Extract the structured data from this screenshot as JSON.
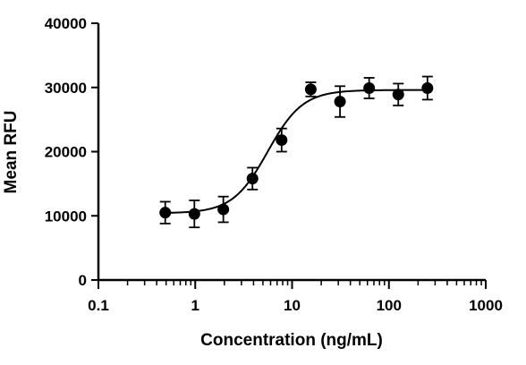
{
  "chart_data": {
    "type": "scatter",
    "title": "",
    "xlabel": "Concentration (ng/mL)",
    "ylabel": "Mean RFU",
    "x_scale": "log",
    "xlim": [
      0.1,
      1000
    ],
    "ylim": [
      0,
      40000
    ],
    "x_ticks": [
      "0.1",
      "1",
      "10",
      "100",
      "1000"
    ],
    "y_ticks": [
      "0",
      "10000",
      "20000",
      "30000",
      "40000"
    ],
    "grid": false,
    "legend": "none",
    "series": [
      {
        "name": "",
        "color": "#000000",
        "points": [
          {
            "x": 0.49,
            "y": 10500,
            "err": 1700
          },
          {
            "x": 0.98,
            "y": 10300,
            "err": 2100
          },
          {
            "x": 1.95,
            "y": 11000,
            "err": 2000
          },
          {
            "x": 3.9,
            "y": 15800,
            "err": 1700
          },
          {
            "x": 7.8,
            "y": 21800,
            "err": 1800
          },
          {
            "x": 15.6,
            "y": 29700,
            "err": 1100
          },
          {
            "x": 31.25,
            "y": 27800,
            "err": 2400
          },
          {
            "x": 62.5,
            "y": 29900,
            "err": 1600
          },
          {
            "x": 125,
            "y": 28900,
            "err": 1700
          },
          {
            "x": 250,
            "y": 29900,
            "err": 1800
          }
        ],
        "fit": {
          "model": "4PL",
          "bottom": 10400,
          "top": 29600,
          "ec50": 5.6,
          "hill": 2.4,
          "x_range": [
            0.49,
            250
          ]
        }
      }
    ]
  }
}
